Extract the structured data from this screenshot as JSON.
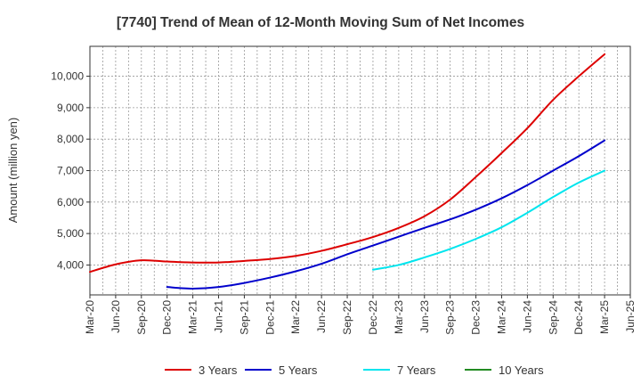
{
  "chart_data": {
    "type": "line",
    "title": "[7740]  Trend of Mean of 12-Month Moving Sum of Net Incomes",
    "xlabel": "",
    "ylabel": "Amount (million yen)",
    "x": [
      "Mar-20",
      "Jun-20",
      "Sep-20",
      "Dec-20",
      "Mar-21",
      "Jun-21",
      "Sep-21",
      "Dec-21",
      "Mar-22",
      "Jun-22",
      "Sep-22",
      "Dec-22",
      "Mar-23",
      "Jun-23",
      "Sep-23",
      "Dec-23",
      "Mar-24",
      "Jun-24",
      "Sep-24",
      "Dec-24",
      "Mar-25",
      "Jun-25"
    ],
    "yticks": [
      4000,
      5000,
      6000,
      7000,
      8000,
      9000,
      10000
    ],
    "ytick_labels": [
      "4,000",
      "5,000",
      "6,000",
      "7,000",
      "8,000",
      "9,000",
      "10,000"
    ],
    "ylim": [
      3050,
      10950
    ],
    "grid": true,
    "legend_position": "bottom",
    "series": [
      {
        "name": "3 Years",
        "color": "#dd0000",
        "values": [
          3780,
          4020,
          4150,
          4110,
          4080,
          4080,
          4130,
          4190,
          4290,
          4450,
          4660,
          4890,
          5180,
          5550,
          6080,
          6800,
          7560,
          8350,
          9250,
          10000,
          10700,
          null
        ]
      },
      {
        "name": "5 Years",
        "color": "#0000cc",
        "values": [
          null,
          null,
          null,
          3300,
          3250,
          3300,
          3430,
          3600,
          3800,
          4040,
          4340,
          4620,
          4900,
          5180,
          5450,
          5760,
          6120,
          6540,
          7000,
          7460,
          7960,
          null
        ]
      },
      {
        "name": "7 Years",
        "color": "#00e5ee",
        "values": [
          null,
          null,
          null,
          null,
          null,
          null,
          null,
          null,
          null,
          null,
          null,
          3850,
          4000,
          4240,
          4510,
          4830,
          5200,
          5660,
          6160,
          6620,
          7000,
          null
        ]
      },
      {
        "name": "10 Years",
        "color": "#228b22",
        "values": [
          null,
          null,
          null,
          null,
          null,
          null,
          null,
          null,
          null,
          null,
          null,
          null,
          null,
          null,
          null,
          null,
          null,
          null,
          null,
          null,
          null,
          null
        ]
      }
    ]
  }
}
